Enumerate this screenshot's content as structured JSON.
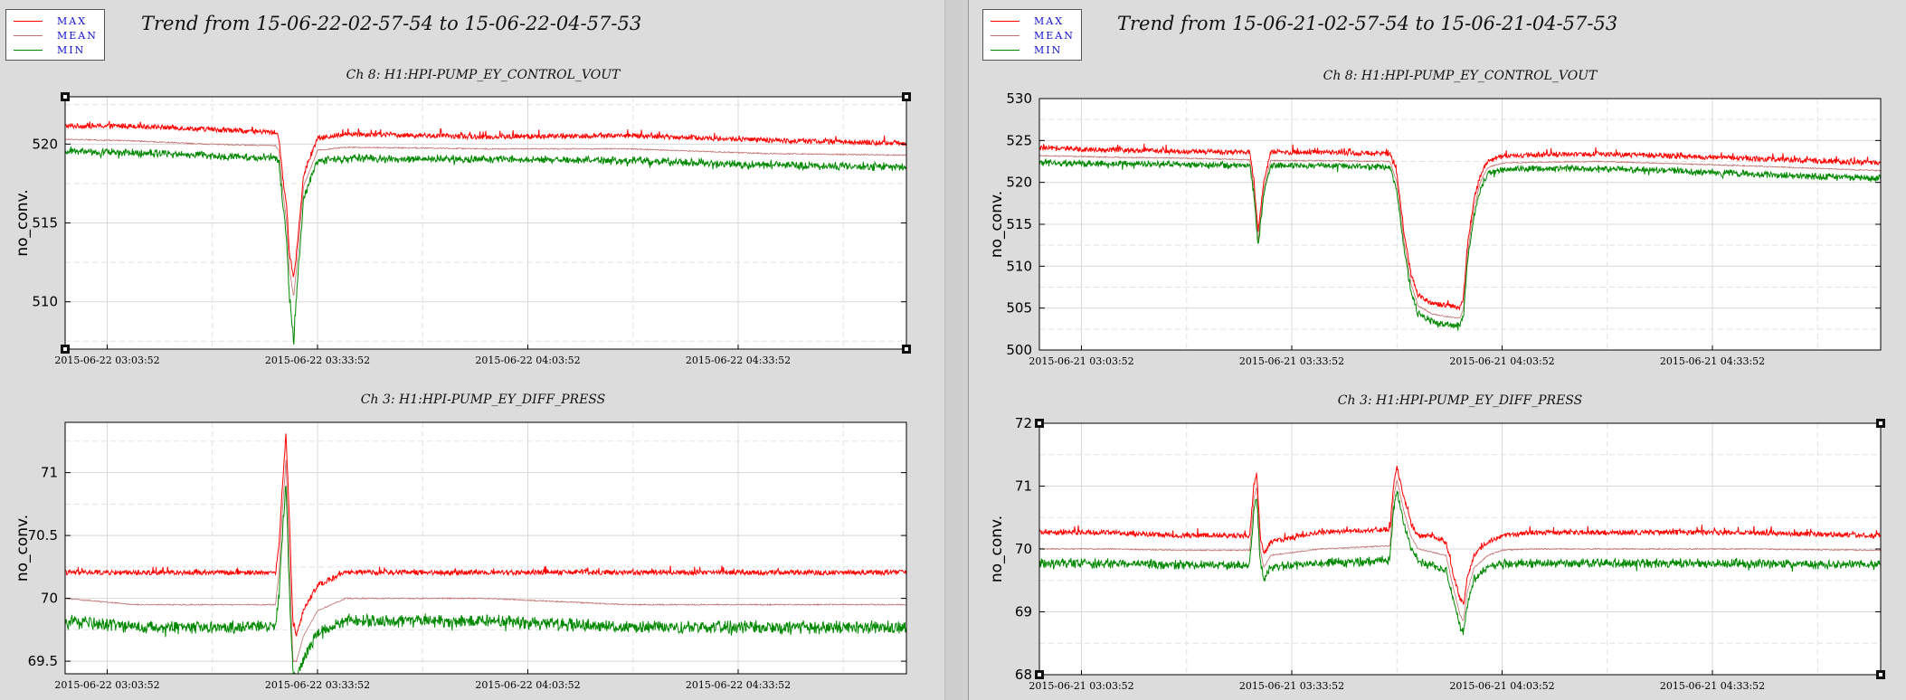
{
  "panels": [
    {
      "legend": {
        "items": [
          {
            "label": "MAX",
            "color": "#ff0000"
          },
          {
            "label": "MEAN",
            "color": "#c07070"
          },
          {
            "label": "MIN",
            "color": "#008800"
          }
        ]
      },
      "trend_title": "Trend from 15-06-22-02-57-54 to 15-06-22-04-57-53"
    },
    {
      "legend": {
        "items": [
          {
            "label": "MAX",
            "color": "#ff0000"
          },
          {
            "label": "MEAN",
            "color": "#c07070"
          },
          {
            "label": "MIN",
            "color": "#008800"
          }
        ]
      },
      "trend_title": "Trend from 15-06-21-02-57-54 to 15-06-21-04-57-53"
    }
  ],
  "chart_data": [
    {
      "type": "line",
      "title": "Ch 8: H1:HPI-PUMP_EY_CONTROL_VOUT",
      "ylabel": "no_conv.",
      "xlabel": "",
      "ylim": [
        507,
        523
      ],
      "yticks": [
        510,
        515,
        520
      ],
      "ytick_labels": [
        "510",
        "515",
        "520"
      ],
      "x_range_minutes": [
        0,
        120
      ],
      "xtick_minutes": [
        6,
        36,
        66,
        96
      ],
      "xtick_labels": [
        "2015-06-22 03:03:52",
        "2015-06-22 03:33:52",
        "2015-06-22 04:03:52",
        "2015-06-22 04:33:52"
      ],
      "grid": true,
      "corner_markers": true,
      "series": [
        {
          "name": "MAX",
          "color": "#ff0000",
          "x": [
            0,
            10,
            20,
            30,
            30.5,
            31,
            31.6,
            32,
            32.6,
            33,
            34,
            36,
            40,
            60,
            80,
            100,
            120
          ],
          "values": [
            521.1,
            521.1,
            520.9,
            520.7,
            520.4,
            518,
            516,
            513,
            511.5,
            513,
            518,
            520.3,
            520.6,
            520.4,
            520.5,
            520.2,
            520.0
          ]
        },
        {
          "name": "MEAN",
          "color": "#c07070",
          "x": [
            0,
            10,
            20,
            30,
            30.5,
            31,
            31.6,
            32,
            32.6,
            33,
            34,
            36,
            40,
            60,
            80,
            100,
            120
          ],
          "values": [
            520.3,
            520.2,
            520.0,
            519.9,
            519.6,
            517.2,
            515.0,
            512.0,
            510.3,
            512.1,
            517.3,
            519.6,
            519.8,
            519.7,
            519.7,
            519.4,
            519.3
          ]
        },
        {
          "name": "MIN",
          "color": "#008800",
          "x": [
            0,
            10,
            20,
            30,
            30.5,
            31,
            31.6,
            32,
            32.6,
            33,
            34,
            36,
            40,
            60,
            80,
            100,
            120
          ],
          "values": [
            519.5,
            519.4,
            519.2,
            519.1,
            518.8,
            516.3,
            513.8,
            510.0,
            507.2,
            510.3,
            516.5,
            518.9,
            519.0,
            519.0,
            518.9,
            518.6,
            518.5
          ]
        }
      ]
    },
    {
      "type": "line",
      "title": "Ch 3: H1:HPI-PUMP_EY_DIFF_PRESS",
      "ylabel": "no_conv.",
      "xlabel": "",
      "ylim": [
        69.4,
        71.4
      ],
      "yticks": [
        69.5,
        70,
        70.5,
        71
      ],
      "ytick_labels": [
        "69.5",
        "70",
        "70.5",
        "71"
      ],
      "x_range_minutes": [
        0,
        120
      ],
      "xtick_minutes": [
        6,
        36,
        66,
        96
      ],
      "xtick_labels": [
        "2015-06-22 03:03:52",
        "2015-06-22 03:33:52",
        "2015-06-22 04:03:52",
        "2015-06-22 04:33:52"
      ],
      "grid": true,
      "corner_markers": false,
      "series": [
        {
          "name": "MAX",
          "color": "#ff0000",
          "x": [
            0,
            10,
            20,
            30,
            30.5,
            31,
            31.5,
            32,
            32.5,
            33,
            34,
            36,
            40,
            60,
            80,
            100,
            120
          ],
          "values": [
            70.2,
            70.2,
            70.2,
            70.2,
            70.4,
            70.9,
            71.3,
            70.6,
            69.8,
            69.7,
            69.9,
            70.1,
            70.2,
            70.2,
            70.2,
            70.2,
            70.2
          ]
        },
        {
          "name": "MEAN",
          "color": "#c07070",
          "x": [
            0,
            10,
            20,
            30,
            30.5,
            31,
            31.5,
            32,
            32.5,
            33,
            34,
            36,
            40,
            60,
            80,
            100,
            120
          ],
          "values": [
            70.0,
            69.95,
            69.95,
            69.95,
            70.2,
            70.7,
            71.1,
            70.3,
            69.5,
            69.5,
            69.7,
            69.9,
            70.0,
            70.0,
            69.95,
            69.95,
            69.95
          ]
        },
        {
          "name": "MIN",
          "color": "#008800",
          "x": [
            0,
            10,
            20,
            30,
            30.5,
            31,
            31.5,
            32,
            32.5,
            33,
            34,
            36,
            40,
            60,
            80,
            100,
            120
          ],
          "values": [
            69.8,
            69.75,
            69.75,
            69.75,
            70.0,
            70.5,
            70.9,
            70.0,
            69.4,
            69.35,
            69.5,
            69.7,
            69.8,
            69.8,
            69.75,
            69.75,
            69.75
          ]
        }
      ]
    },
    {
      "type": "line",
      "title": "Ch 8: H1:HPI-PUMP_EY_CONTROL_VOUT",
      "ylabel": "no_conv.",
      "xlabel": "",
      "ylim": [
        500,
        530
      ],
      "yticks": [
        500,
        505,
        510,
        515,
        520,
        525,
        530
      ],
      "ytick_labels": [
        "500",
        "505",
        "510",
        "515",
        "520",
        "525",
        "530"
      ],
      "x_range_minutes": [
        0,
        120
      ],
      "xtick_minutes": [
        6,
        36,
        66,
        96
      ],
      "xtick_labels": [
        "2015-06-21 03:03:52",
        "2015-06-21 03:33:52",
        "2015-06-21 04:03:52",
        "2015-06-21 04:33:52"
      ],
      "grid": true,
      "corner_markers": false,
      "series": [
        {
          "name": "MAX",
          "color": "#ff0000",
          "x": [
            0,
            10,
            20,
            30,
            30.6,
            31.2,
            32,
            33,
            40,
            50,
            51,
            52,
            53,
            54,
            56,
            58,
            60,
            60.5,
            61,
            62,
            63,
            64,
            66,
            70,
            80,
            100,
            120
          ],
          "values": [
            524,
            523.8,
            523.6,
            523.5,
            520,
            514,
            520,
            523.5,
            523.5,
            523.3,
            521,
            514,
            509,
            506.5,
            505.5,
            505.2,
            505,
            506,
            512,
            518,
            521,
            522.5,
            523,
            523.2,
            523.3,
            522.8,
            522.2
          ]
        },
        {
          "name": "MEAN",
          "color": "#c07070",
          "x": [
            0,
            10,
            20,
            30,
            30.6,
            31.2,
            32,
            33,
            40,
            50,
            51,
            52,
            53,
            54,
            56,
            58,
            60,
            60.5,
            61,
            62,
            63,
            64,
            66,
            70,
            80,
            100,
            120
          ],
          "values": [
            523.2,
            523.0,
            522.9,
            522.7,
            519.3,
            513.0,
            519.2,
            522.6,
            522.6,
            522.5,
            520.0,
            513.0,
            508.0,
            505.3,
            504.3,
            504.0,
            503.8,
            505.0,
            511.0,
            517.0,
            520.3,
            521.8,
            522.3,
            522.4,
            522.5,
            522.0,
            521.4
          ]
        },
        {
          "name": "MIN",
          "color": "#008800",
          "x": [
            0,
            10,
            20,
            30,
            30.6,
            31.2,
            32,
            33,
            40,
            50,
            51,
            52,
            53,
            54,
            56,
            58,
            60,
            60.5,
            61,
            62,
            63,
            64,
            66,
            70,
            80,
            100,
            120
          ],
          "values": [
            522.3,
            522.2,
            522.1,
            522.0,
            518.5,
            512.5,
            518.5,
            522.0,
            522.0,
            521.8,
            519.0,
            512.0,
            507.0,
            504.3,
            503.3,
            503.0,
            503.0,
            504.0,
            510.0,
            516.0,
            519.5,
            521.0,
            521.5,
            521.6,
            521.6,
            521.0,
            520.4
          ]
        }
      ]
    },
    {
      "type": "line",
      "title": "Ch 3: H1:HPI-PUMP_EY_DIFF_PRESS",
      "ylabel": "no_conv.",
      "xlabel": "",
      "ylim": [
        68,
        72
      ],
      "yticks": [
        68,
        69,
        70,
        71,
        72
      ],
      "ytick_labels": [
        "68",
        "69",
        "70",
        "71",
        "72"
      ],
      "x_range_minutes": [
        0,
        120
      ],
      "xtick_minutes": [
        6,
        36,
        66,
        96
      ],
      "xtick_labels": [
        "2015-06-21 03:03:52",
        "2015-06-21 03:33:52",
        "2015-06-21 04:03:52",
        "2015-06-21 04:33:52"
      ],
      "grid": true,
      "corner_markers": true,
      "series": [
        {
          "name": "MAX",
          "color": "#ff0000",
          "x": [
            0,
            10,
            20,
            30,
            30.6,
            31,
            31.5,
            32,
            33,
            40,
            50,
            50.5,
            51,
            52,
            53,
            54,
            56,
            58,
            59,
            60,
            60.5,
            61,
            62,
            64,
            66,
            70,
            80,
            100,
            120
          ],
          "values": [
            70.25,
            70.25,
            70.2,
            70.2,
            71.0,
            71.2,
            70.2,
            69.9,
            70.1,
            70.25,
            70.3,
            71.0,
            71.3,
            70.8,
            70.4,
            70.2,
            70.2,
            70.1,
            69.6,
            69.2,
            69.1,
            69.5,
            69.9,
            70.1,
            70.2,
            70.25,
            70.25,
            70.25,
            70.2
          ]
        },
        {
          "name": "MEAN",
          "color": "#c07070",
          "x": [
            0,
            10,
            20,
            30,
            30.6,
            31,
            31.5,
            32,
            33,
            40,
            50,
            50.5,
            51,
            52,
            53,
            54,
            56,
            58,
            59,
            60,
            60.5,
            61,
            62,
            64,
            66,
            70,
            80,
            100,
            120
          ],
          "values": [
            70.0,
            70.0,
            69.98,
            69.98,
            70.8,
            71.0,
            70.0,
            69.7,
            69.9,
            70.0,
            70.05,
            70.8,
            71.1,
            70.6,
            70.2,
            70.0,
            69.95,
            69.9,
            69.4,
            68.95,
            68.85,
            69.3,
            69.7,
            69.9,
            69.98,
            70.0,
            70.0,
            70.0,
            69.98
          ]
        },
        {
          "name": "MIN",
          "color": "#008800",
          "x": [
            0,
            10,
            20,
            30,
            30.6,
            31,
            31.5,
            32,
            33,
            40,
            50,
            50.5,
            51,
            52,
            53,
            54,
            56,
            58,
            59,
            60,
            60.5,
            61,
            62,
            64,
            66,
            70,
            80,
            100,
            120
          ],
          "values": [
            69.75,
            69.75,
            69.72,
            69.72,
            70.6,
            70.8,
            69.8,
            69.5,
            69.7,
            69.75,
            69.8,
            70.6,
            70.9,
            70.4,
            70.0,
            69.8,
            69.7,
            69.65,
            69.2,
            68.75,
            68.65,
            69.1,
            69.5,
            69.7,
            69.75,
            69.75,
            69.75,
            69.75,
            69.72
          ]
        }
      ]
    }
  ]
}
